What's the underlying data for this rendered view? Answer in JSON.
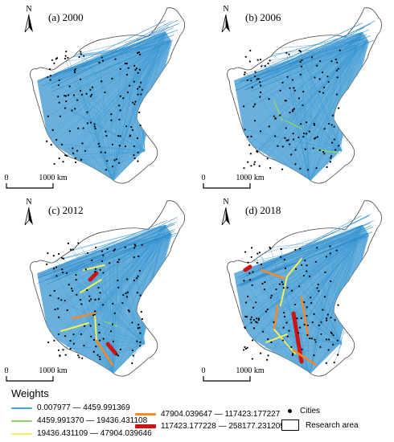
{
  "panels": [
    {
      "label": "(a) 2000",
      "scale_zero": "0",
      "scale_end": "1000 km",
      "north": "N"
    },
    {
      "label": "(b) 2006",
      "scale_zero": "0",
      "scale_end": "1000 km",
      "north": "N"
    },
    {
      "label": "(c) 2012",
      "scale_zero": "0",
      "scale_end": "1000 km",
      "north": "N"
    },
    {
      "label": "(d) 2018",
      "scale_zero": "0",
      "scale_end": "1000 km",
      "north": "N"
    }
  ],
  "legend": {
    "title": "Weights",
    "classes": [
      {
        "range": "0.007977 — 4459.991369",
        "color": "#4a9fd6"
      },
      {
        "range": "4459.991370 — 19436.431108",
        "color": "#8fd36a"
      },
      {
        "range": "19436.431109 — 47904.039646",
        "color": "#f5f05a"
      },
      {
        "range": "47904.039647 — 117423.177227",
        "color": "#f08a2a"
      },
      {
        "range": "117423.177228 — 258177.231209",
        "color": "#cc1414"
      }
    ],
    "cities_label": "Cities",
    "research_area_label": "Research area"
  },
  "colors": {
    "network": "#3d9ad4",
    "outline": "#444444"
  }
}
